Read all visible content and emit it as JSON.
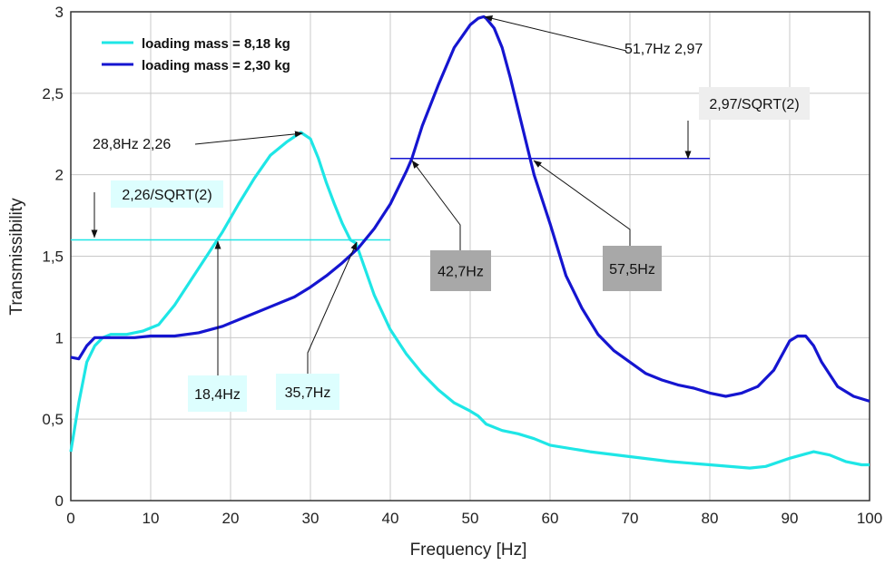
{
  "chart_data": {
    "type": "line",
    "title": "",
    "xlabel": "Frequency [Hz]",
    "ylabel": "Transmissibility",
    "xlim": [
      0,
      100
    ],
    "ylim": [
      0,
      3
    ],
    "grid": true,
    "legend_position": "top-left",
    "x_ticks": [
      "0",
      "10",
      "20",
      "30",
      "40",
      "50",
      "60",
      "70",
      "80",
      "90",
      "100"
    ],
    "y_ticks": [
      "0",
      "0,5",
      "1",
      "1,5",
      "2",
      "2,5",
      "3"
    ],
    "series": [
      {
        "name": "loading mass = 8,18 kg",
        "color": "#1ee6e6",
        "x": [
          0,
          1,
          2,
          3,
          4,
          5,
          7,
          9,
          11,
          13,
          15,
          17,
          19,
          21,
          23,
          25,
          27,
          28.8,
          30,
          31,
          32,
          33,
          34,
          35,
          35.7,
          37,
          38,
          40,
          42,
          44,
          46,
          48,
          50,
          51,
          52,
          54,
          56,
          58,
          60,
          65,
          70,
          75,
          80,
          85,
          87,
          90,
          93,
          95,
          97,
          99,
          100
        ],
        "y": [
          0.3,
          0.6,
          0.85,
          0.95,
          1.0,
          1.02,
          1.02,
          1.04,
          1.08,
          1.2,
          1.35,
          1.5,
          1.65,
          1.82,
          1.98,
          2.12,
          2.2,
          2.26,
          2.22,
          2.1,
          1.95,
          1.82,
          1.7,
          1.6,
          1.58,
          1.4,
          1.26,
          1.05,
          0.9,
          0.78,
          0.68,
          0.6,
          0.55,
          0.52,
          0.47,
          0.43,
          0.41,
          0.38,
          0.34,
          0.3,
          0.27,
          0.24,
          0.22,
          0.2,
          0.21,
          0.26,
          0.3,
          0.28,
          0.24,
          0.22,
          0.22
        ]
      },
      {
        "name": "loading mass = 2,30 kg",
        "color": "#1515d0",
        "x": [
          0,
          1,
          2,
          3,
          4,
          5,
          8,
          10,
          13,
          16,
          19,
          22,
          25,
          28,
          30,
          32,
          34,
          36,
          38,
          40,
          42,
          42.7,
          44,
          46,
          48,
          50,
          51,
          51.7,
          52,
          53,
          54,
          55,
          56,
          57,
          57.5,
          58,
          60,
          62,
          64,
          66,
          68,
          70,
          72,
          74,
          76,
          78,
          80,
          82,
          84,
          86,
          88,
          90,
          91,
          92,
          93,
          94,
          96,
          98,
          100
        ],
        "y": [
          0.88,
          0.87,
          0.95,
          1.0,
          1.0,
          1.0,
          1.0,
          1.01,
          1.01,
          1.03,
          1.07,
          1.13,
          1.19,
          1.25,
          1.31,
          1.38,
          1.46,
          1.55,
          1.67,
          1.82,
          2.02,
          2.1,
          2.3,
          2.55,
          2.78,
          2.92,
          2.96,
          2.97,
          2.96,
          2.9,
          2.78,
          2.6,
          2.4,
          2.2,
          2.1,
          2.0,
          1.7,
          1.38,
          1.18,
          1.02,
          0.92,
          0.85,
          0.78,
          0.74,
          0.71,
          0.69,
          0.66,
          0.64,
          0.66,
          0.7,
          0.8,
          0.98,
          1.01,
          1.01,
          0.95,
          0.85,
          0.7,
          0.64,
          0.61
        ]
      }
    ],
    "reference_lines": [
      {
        "name": "2,26/SQRT(2)",
        "y": 1.6,
        "x_from": 0,
        "x_to": 40,
        "color": "#1ee6e6"
      },
      {
        "name": "2,97/SQRT(2)",
        "y": 2.1,
        "x_from": 40,
        "x_to": 80,
        "color": "#1515d0"
      }
    ],
    "annotations": [
      {
        "text": "28,8Hz   2,26",
        "x": 28.8,
        "y": 2.26,
        "bg": "#ffffff"
      },
      {
        "text": "51,7Hz  2,97",
        "x": 51.7,
        "y": 2.97,
        "bg": "#ffffff"
      },
      {
        "text": "2,26/SQRT(2)",
        "x": 3,
        "y": 1.6,
        "bg": "#ddfefe"
      },
      {
        "text": "2,97/SQRT(2)",
        "x": 78,
        "y": 2.1,
        "bg": "#eeeeee"
      },
      {
        "text": "18,4Hz",
        "x": 18.4,
        "y": 1.6,
        "bg": "#ddfefe"
      },
      {
        "text": "35,7Hz",
        "x": 35.7,
        "y": 1.6,
        "bg": "#ddfefe"
      },
      {
        "text": "42,7Hz",
        "x": 42.7,
        "y": 2.1,
        "bg": "#a8a8a8"
      },
      {
        "text": "57,5Hz",
        "x": 57.5,
        "y": 2.1,
        "bg": "#a8a8a8"
      }
    ]
  }
}
